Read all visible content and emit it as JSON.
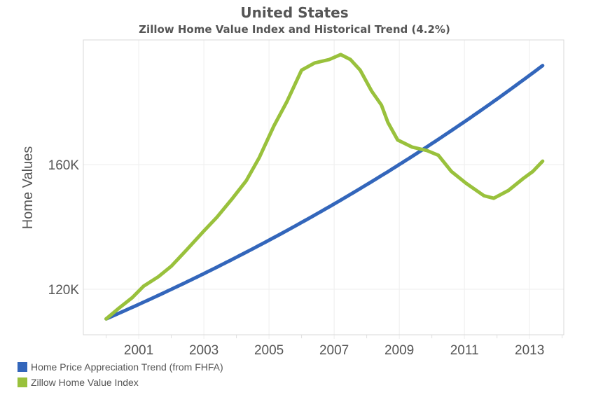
{
  "chart_data": {
    "type": "line",
    "title": "United States",
    "subtitle": "Zillow Home Value Index and Historical Trend (4.2%)",
    "xlabel": "",
    "ylabel": "Home Values",
    "xlim": [
      1999.3,
      2014.05
    ],
    "ylim": [
      105.4,
      200
    ],
    "x_ticks": [
      2001,
      2003,
      2005,
      2007,
      2009,
      2011,
      2013
    ],
    "x_tick_labels": [
      "2001",
      "2003",
      "2005",
      "2007",
      "2009",
      "2011",
      "2013"
    ],
    "y_ticks": [
      120,
      160
    ],
    "y_tick_labels": [
      "120K",
      "160K"
    ],
    "grid": true,
    "legend_placement": "bottom-left",
    "series": [
      {
        "name": "Home Price Appreciation Trend (from FHFA)",
        "color": "#3366bb",
        "start_year": 2000.0,
        "end_year": 2013.4,
        "start_value": 110.5,
        "annual_rate": 0.042
      },
      {
        "name": "Zillow Home Value Index",
        "color": "#99c13c",
        "x": [
          2000.0,
          2000.4,
          2000.8,
          2001.15,
          2001.6,
          2002.0,
          2002.45,
          2003.0,
          2003.4,
          2003.85,
          2004.3,
          2004.7,
          2005.15,
          2005.55,
          2006.0,
          2006.4,
          2006.85,
          2007.2,
          2007.5,
          2007.8,
          2008.15,
          2008.45,
          2008.65,
          2008.95,
          2009.4,
          2009.85,
          2010.2,
          2010.6,
          2011.05,
          2011.6,
          2011.9,
          2012.35,
          2012.8,
          2013.1,
          2013.4
        ],
        "values": [
          110.5,
          114,
          117.3,
          121,
          124,
          127.4,
          132.4,
          138.7,
          143.1,
          148.8,
          154.8,
          162.2,
          172.4,
          180.2,
          190.3,
          192.6,
          193.7,
          195.3,
          193.7,
          190.3,
          183.6,
          179.1,
          173.5,
          167.9,
          165.6,
          164.5,
          163,
          157.8,
          154,
          150,
          149.2,
          151.7,
          155.5,
          157.8,
          161.1
        ]
      }
    ]
  }
}
